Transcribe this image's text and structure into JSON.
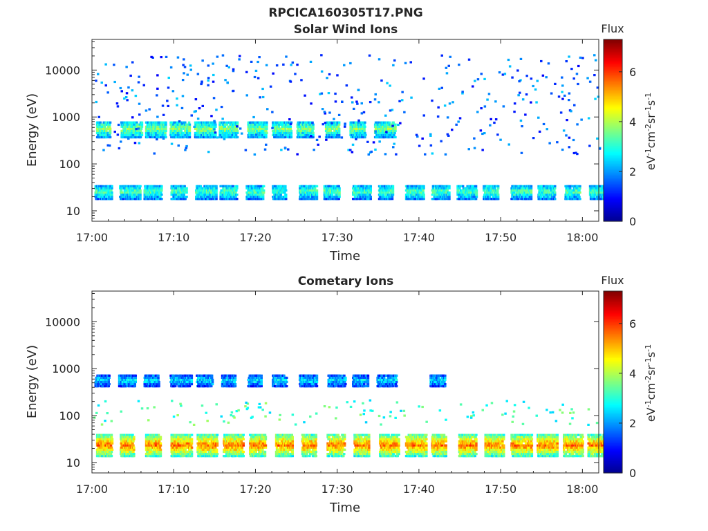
{
  "figure_title": "RPCICA160305T17.PNG",
  "colormap": [
    "#00008f",
    "#0000ff",
    "#0080ff",
    "#00ffff",
    "#80ff80",
    "#ffff00",
    "#ff8000",
    "#ff0000",
    "#800000"
  ],
  "chart_data": [
    {
      "type": "heatmap",
      "title": "Solar Wind Ions",
      "xlabel": "Time",
      "ylabel": "Energy (eV)",
      "xticks": [
        "17:00",
        "17:10",
        "17:20",
        "17:30",
        "17:40",
        "17:50",
        "18:00"
      ],
      "xlim_minutes": [
        0,
        62
      ],
      "yscale": "log",
      "yticks": [
        10,
        100,
        1000,
        10000
      ],
      "ytick_labels": [
        "10",
        "100",
        "1000",
        "10000"
      ],
      "ylim": [
        6,
        45000
      ],
      "colorbar": {
        "title": "Flux",
        "label": "eV-1cm-2sr-1s-1",
        "ticks": [
          0,
          2,
          4,
          6
        ],
        "ticklabels": [
          "0",
          "2",
          "4",
          "6"
        ],
        "range": [
          0,
          7.3
        ]
      },
      "bands": [
        {
          "energy_eV": [
            350,
            800
          ],
          "flux": 3.7,
          "times_min": [
            0.5,
            3.5,
            6.5,
            9.5,
            12.5,
            15.5,
            19,
            22,
            25,
            28.5,
            31.5,
            34.5
          ]
        },
        {
          "energy_eV": [
            17,
            35
          ],
          "flux": 3.3,
          "times_min": [
            0.3,
            3.3,
            6.3,
            9.6,
            12.6,
            15.6,
            18.8,
            22,
            25.3,
            28.3,
            31.8,
            35,
            38.3,
            41.5,
            44.6,
            47.8,
            51.2,
            54.5,
            57.8,
            60.8
          ]
        }
      ],
      "scatter": {
        "energy_eV": [
          150,
          20000
        ],
        "flux": 1.5,
        "density": "sparse"
      },
      "grid": false
    },
    {
      "type": "heatmap",
      "title": "Cometary Ions",
      "xlabel": "Time",
      "ylabel": "Energy (eV)",
      "xticks": [
        "17:00",
        "17:10",
        "17:20",
        "17:30",
        "17:40",
        "17:50",
        "18:00"
      ],
      "xlim_minutes": [
        0,
        62
      ],
      "yscale": "log",
      "yticks": [
        10,
        100,
        1000,
        10000
      ],
      "ytick_labels": [
        "10",
        "100",
        "1000",
        "10000"
      ],
      "ylim": [
        6,
        45000
      ],
      "colorbar": {
        "title": "Flux",
        "label": "eV-1cm-2sr-1s-1",
        "ticks": [
          0,
          2,
          4,
          6
        ],
        "ticklabels": [
          "0",
          "2",
          "4",
          "6"
        ],
        "range": [
          0,
          7.3
        ]
      },
      "bands": [
        {
          "energy_eV": [
            400,
            700
          ],
          "flux": 2.5,
          "times_min": [
            0.3,
            3.2,
            6.3,
            9.5,
            12.7,
            15.8,
            19,
            22,
            25.3,
            28.8,
            31.8,
            34.8,
            41.3
          ]
        },
        {
          "energy_eV": [
            13,
            38
          ],
          "flux": 5.6,
          "times_min": [
            0.5,
            3.4,
            6.5,
            9.6,
            12.8,
            16,
            19.2,
            22.4,
            25.6,
            28.7,
            32,
            35.1,
            38.3,
            41.5,
            44.8,
            48,
            51.2,
            54.4,
            57.6,
            60.6
          ]
        }
      ],
      "scatter": {
        "energy_eV": [
          60,
          200
        ],
        "flux": 3.0,
        "density": "sparse"
      },
      "grid": false
    }
  ]
}
